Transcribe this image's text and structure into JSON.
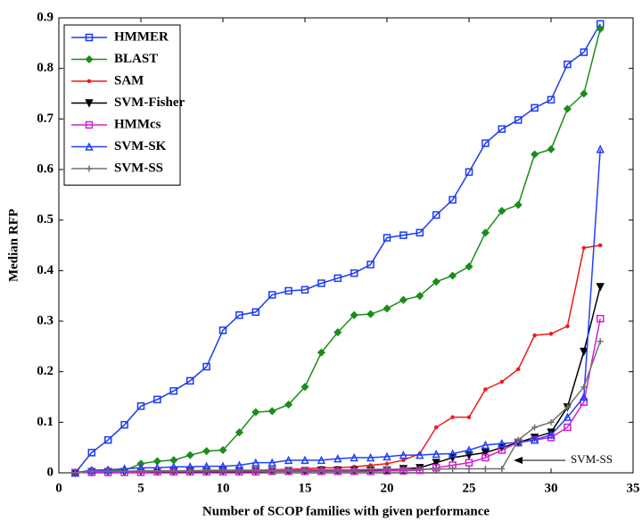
{
  "chart_data": {
    "type": "line",
    "x_label": "Number of SCOP families with given performance",
    "y_label": "Median RFP",
    "annotations": [
      "SVM-SS"
    ],
    "xlim": [
      0,
      35
    ],
    "xticks": [
      0,
      5,
      10,
      15,
      20,
      25,
      30,
      35
    ],
    "ylim": [
      0,
      0.9
    ],
    "yticks": [
      0,
      0.1,
      0.2,
      0.3,
      0.4,
      0.5,
      0.6,
      0.7,
      0.8,
      0.9
    ],
    "legend": "upper left",
    "x": [
      1,
      2,
      3,
      4,
      5,
      6,
      7,
      8,
      9,
      10,
      11,
      12,
      13,
      14,
      15,
      16,
      17,
      18,
      19,
      20,
      21,
      22,
      23,
      24,
      25,
      26,
      27,
      28,
      29,
      30,
      31,
      32,
      33
    ],
    "series": [
      {
        "name": "HMMER",
        "color": "#1a3cf0",
        "marker": "square",
        "values": [
          0,
          0.04,
          0.065,
          0.095,
          0.132,
          0.145,
          0.162,
          0.182,
          0.21,
          0.282,
          0.312,
          0.318,
          0.352,
          0.36,
          0.362,
          0.375,
          0.385,
          0.395,
          0.412,
          0.465,
          0.47,
          0.475,
          0.51,
          0.54,
          0.595,
          0.652,
          0.68,
          0.698,
          0.722,
          0.738,
          0.808,
          0.832,
          0.888
        ]
      },
      {
        "name": "BLAST",
        "color": "#1a8c1a",
        "marker": "diamond",
        "values": [
          0,
          0.005,
          0.005,
          0.005,
          0.018,
          0.023,
          0.025,
          0.035,
          0.043,
          0.045,
          0.08,
          0.12,
          0.122,
          0.135,
          0.17,
          0.238,
          0.278,
          0.312,
          0.314,
          0.325,
          0.342,
          0.35,
          0.378,
          0.39,
          0.408,
          0.475,
          0.518,
          0.53,
          0.63,
          0.64,
          0.72,
          0.75,
          0.878
        ]
      },
      {
        "name": "SAM",
        "color": "#f01a1a",
        "marker": "dot",
        "values": [
          0,
          0.002,
          0.002,
          0.003,
          0.003,
          0.003,
          0.004,
          0.004,
          0.004,
          0.005,
          0.005,
          0.005,
          0.006,
          0.007,
          0.008,
          0.01,
          0.01,
          0.012,
          0.015,
          0.018,
          0.025,
          0.038,
          0.09,
          0.11,
          0.11,
          0.165,
          0.18,
          0.205,
          0.272,
          0.275,
          0.29,
          0.445,
          0.45
        ]
      },
      {
        "name": "SVM-Fisher",
        "color": "#000000",
        "marker": "triangle-down",
        "values": [
          0,
          0.002,
          0.002,
          0.002,
          0.003,
          0.003,
          0.003,
          0.003,
          0.003,
          0.004,
          0.004,
          0.004,
          0.004,
          0.004,
          0.004,
          0.005,
          0.005,
          0.005,
          0.005,
          0.005,
          0.008,
          0.01,
          0.02,
          0.03,
          0.035,
          0.04,
          0.05,
          0.06,
          0.07,
          0.08,
          0.13,
          0.24,
          0.368
        ]
      },
      {
        "name": "HMMcs",
        "color": "#d020d0",
        "marker": "square",
        "values": [
          0,
          0.001,
          0.001,
          0.001,
          0.001,
          0.002,
          0.002,
          0.002,
          0.002,
          0.002,
          0.002,
          0.002,
          0.003,
          0.003,
          0.003,
          0.003,
          0.003,
          0.003,
          0.003,
          0.004,
          0.004,
          0.005,
          0.01,
          0.015,
          0.02,
          0.03,
          0.045,
          0.06,
          0.065,
          0.07,
          0.09,
          0.14,
          0.305
        ]
      },
      {
        "name": "SVM-SK",
        "color": "#2040ff",
        "marker": "triangle-up",
        "values": [
          0,
          0.005,
          0.006,
          0.008,
          0.01,
          0.01,
          0.012,
          0.012,
          0.013,
          0.013,
          0.015,
          0.02,
          0.02,
          0.025,
          0.025,
          0.025,
          0.028,
          0.03,
          0.03,
          0.032,
          0.035,
          0.035,
          0.037,
          0.038,
          0.045,
          0.055,
          0.058,
          0.06,
          0.065,
          0.075,
          0.11,
          0.15,
          0.64
        ]
      },
      {
        "name": "SVM-SS",
        "color": "#707070",
        "marker": "plus",
        "values": [
          0,
          0.003,
          0.003,
          0.003,
          0.004,
          0.004,
          0.004,
          0.004,
          0.005,
          0.005,
          0.005,
          0.005,
          0.005,
          0.006,
          0.006,
          0.006,
          0.006,
          0.006,
          0.007,
          0.007,
          0.007,
          0.007,
          0.007,
          0.008,
          0.008,
          0.008,
          0.008,
          0.065,
          0.09,
          0.1,
          0.13,
          0.17,
          0.26
        ]
      }
    ]
  }
}
